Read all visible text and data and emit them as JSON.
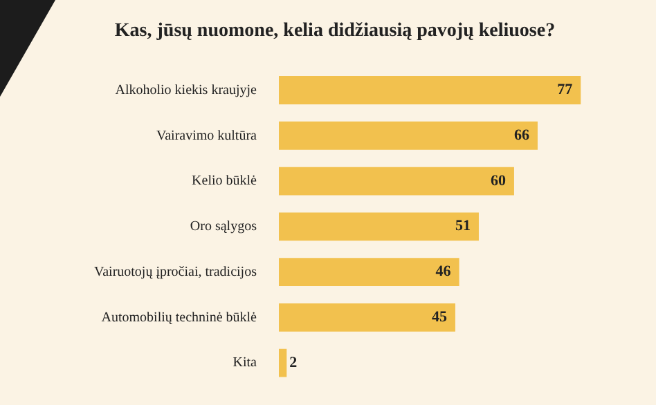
{
  "chart_data": {
    "type": "bar",
    "orientation": "horizontal",
    "title": "Kas, jūsų nuomone, kelia didžiausią pavojų keliuose?",
    "categories": [
      "Alkoholio kiekis kraujyje",
      "Vairavimo kultūra",
      "Kelio būklė",
      "Oro sąlygos",
      "Vairuotojų įpročiai, tradicijos",
      "Automobilių techninė būklė",
      "Kita"
    ],
    "values": [
      77,
      66,
      60,
      51,
      46,
      45,
      2
    ],
    "color": "#f2c14e",
    "data_labels": true,
    "legend": false
  }
}
